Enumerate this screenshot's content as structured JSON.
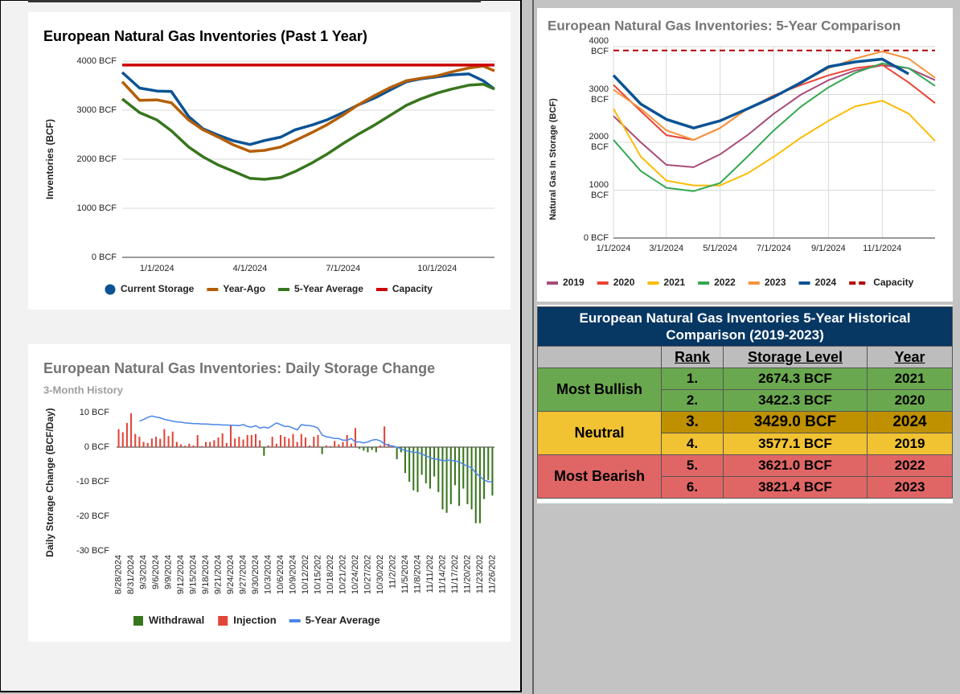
{
  "chart_data": [
    {
      "type": "line",
      "title": "European Natural Gas Inventories (Past 1 Year)",
      "y_label": "Inventories (BCF)",
      "x": [
        "11/28/2023",
        "12/15/2023",
        "1/1/2024",
        "1/15/2024",
        "2/1/2024",
        "2/15/2024",
        "3/1/2024",
        "3/15/2024",
        "4/1/2024",
        "4/15/2024",
        "5/1/2024",
        "5/15/2024",
        "6/1/2024",
        "6/15/2024",
        "7/1/2024",
        "7/15/2024",
        "8/1/2024",
        "8/15/2024",
        "9/1/2024",
        "9/15/2024",
        "10/1/2024",
        "10/15/2024",
        "11/1/2024",
        "11/15/2024",
        "11/26/2024"
      ],
      "xlim": [
        "11/28/2023",
        "11/26/2024"
      ],
      "xticks": [
        "1/1/2024",
        "4/1/2024",
        "7/1/2024",
        "10/1/2024"
      ],
      "ylim": [
        0,
        4000
      ],
      "yticks": [
        {
          "value": 0,
          "label": "0 BCF"
        },
        {
          "value": 1000,
          "label": "1000 BCF"
        },
        {
          "value": 2000,
          "label": "2000 BCF"
        },
        {
          "value": 3000,
          "label": "3000 BCF"
        },
        {
          "value": 4000,
          "label": "4000 BCF"
        }
      ],
      "grid": true,
      "series": [
        {
          "name": "Current Storage",
          "color": "#0b5394",
          "marker": "circle",
          "values": [
            3770,
            3450,
            3390,
            3380,
            2870,
            2620,
            2490,
            2380,
            2300,
            2380,
            2450,
            2600,
            2700,
            2800,
            2950,
            3100,
            3250,
            3400,
            3580,
            3640,
            3680,
            3720,
            3740,
            3600,
            3430
          ]
        },
        {
          "name": "Year-Ago",
          "color": "#b45f06",
          "values": [
            3580,
            3200,
            3210,
            3150,
            2800,
            2600,
            2450,
            2300,
            2160,
            2180,
            2250,
            2380,
            2550,
            2700,
            2900,
            3100,
            3300,
            3450,
            3600,
            3650,
            3700,
            3780,
            3860,
            3900,
            3800
          ]
        },
        {
          "name": "5-Year Average",
          "color": "#38761d",
          "values": [
            3230,
            2950,
            2800,
            2580,
            2250,
            2050,
            1880,
            1760,
            1610,
            1590,
            1630,
            1750,
            1930,
            2100,
            2320,
            2500,
            2700,
            2880,
            3100,
            3230,
            3350,
            3430,
            3510,
            3530,
            3430
          ]
        },
        {
          "name": "Capacity",
          "color": "#cc0000",
          "values": [
            3920,
            3920,
            3920,
            3920,
            3920,
            3920,
            3920,
            3920,
            3920,
            3920,
            3920,
            3920,
            3920,
            3920,
            3920,
            3920,
            3920,
            3920,
            3920,
            3920,
            3920,
            3920,
            3920,
            3920,
            3920
          ]
        }
      ]
    },
    {
      "type": "bar",
      "title": "European Natural Gas Inventories: Daily Storage Change",
      "subtitle": "3-Month History",
      "y_label": "Daily Storage Change (BCF/Day)",
      "categories": [
        "8/28/2024",
        null,
        null,
        "8/31/2024",
        null,
        null,
        "9/3/2024",
        null,
        null,
        "9/6/2024",
        null,
        null,
        "9/9/2024",
        null,
        null,
        "9/12/2024",
        null,
        null,
        "9/15/2024",
        null,
        null,
        "9/18/2024",
        null,
        null,
        "9/21/2024",
        null,
        null,
        "9/24/2024",
        null,
        null,
        "9/27/2024",
        null,
        null,
        "9/30/2024",
        null,
        null,
        "10/3/2024",
        null,
        null,
        "10/6/2024",
        null,
        null,
        "10/9/2024",
        null,
        null,
        "10/12/202",
        null,
        null,
        "10/15/202",
        null,
        null,
        "10/18/202",
        null,
        null,
        "10/21/202",
        null,
        null,
        "10/24/202",
        null,
        null,
        "10/27/202",
        null,
        null,
        "10/30/202",
        null,
        null,
        "11/2/202",
        null,
        null,
        "11/5/2024",
        null,
        null,
        "11/8/2024",
        null,
        null,
        "11/11/202",
        null,
        null,
        "11/14/202",
        null,
        null,
        "11/17/202",
        null,
        null,
        "11/20/202",
        null,
        null,
        "11/23/202",
        null,
        null,
        "11/26/202"
      ],
      "ylim": [
        -30,
        10
      ],
      "yticks": [
        {
          "value": -30,
          "label": "-30 BCF"
        },
        {
          "value": -20,
          "label": "-20 BCF"
        },
        {
          "value": -10,
          "label": "-10 BCF"
        },
        {
          "value": 0,
          "label": "0 BCF"
        },
        {
          "value": 10,
          "label": "10 BCF"
        }
      ],
      "grid": false,
      "series": [
        {
          "name": "Withdrawal",
          "color": "#38761d",
          "values": [
            null,
            null,
            null,
            null,
            null,
            null,
            null,
            null,
            null,
            null,
            null,
            null,
            null,
            null,
            null,
            null,
            null,
            null,
            null,
            null,
            null,
            null,
            null,
            null,
            null,
            null,
            null,
            null,
            null,
            null,
            null,
            null,
            null,
            null,
            null,
            -2.5,
            null,
            null,
            null,
            null,
            null,
            null,
            null,
            null,
            null,
            null,
            null,
            null,
            null,
            -2.0,
            null,
            null,
            null,
            null,
            null,
            null,
            null,
            null,
            -0.5,
            -1.0,
            -1.5,
            -0.8,
            -1.5,
            null,
            null,
            null,
            null,
            -3.5,
            -1.5,
            -7.5,
            -10.0,
            -12.5,
            -13.0,
            -8.0,
            -10.5,
            -12.0,
            -8.5,
            -13.0,
            -18.0,
            -19.0,
            -16.5,
            -11.0,
            -17.0,
            -12.0,
            -16.5,
            -18.0,
            -22.0,
            -22.0,
            -15.0,
            -9.5,
            -14.0
          ]
        },
        {
          "name": "Injection",
          "color": "#e0463a",
          "values": [
            5.2,
            4.3,
            7.0,
            9.8,
            3.8,
            3.0,
            1.5,
            1.2,
            2.5,
            3.0,
            2.4,
            5.2,
            3.2,
            4.5,
            1.5,
            0.8,
            0.4,
            1.0,
            0.5,
            3.5,
            0.3,
            1.5,
            1.5,
            2.0,
            2.8,
            4.0,
            1.2,
            6.5,
            2.5,
            3.0,
            2.2,
            3.5,
            3.5,
            3.8,
            2.0,
            null,
            0.5,
            3.0,
            1.0,
            3.5,
            3.0,
            2.5,
            3.8,
            1.5,
            3.8,
            2.8,
            0.5,
            3.0,
            3.5,
            null,
            0.5,
            0.3,
            1.8,
            0.8,
            1.5,
            3.5,
            1.0,
            5.5,
            null,
            null,
            null,
            null,
            null,
            0.5,
            6.0,
            1.0,
            0.5,
            null,
            null,
            null,
            null,
            null,
            null,
            null,
            null,
            null,
            null,
            null,
            null,
            null,
            null,
            null,
            null,
            null,
            null,
            null,
            null,
            null,
            null,
            null,
            null
          ]
        },
        {
          "name": "5-Year Average",
          "color": "#4a86e8",
          "type": "line",
          "values": [
            null,
            null,
            null,
            null,
            null,
            7.5,
            8.0,
            8.6,
            9.0,
            8.7,
            8.5,
            8.0,
            7.8,
            7.5,
            7.3,
            7.2,
            7.0,
            6.9,
            6.8,
            6.8,
            6.7,
            6.7,
            6.6,
            6.5,
            6.5,
            6.4,
            6.4,
            6.3,
            6.3,
            6.2,
            6.5,
            6.0,
            5.8,
            6.2,
            5.5,
            5.8,
            5.5,
            6.2,
            7.0,
            6.5,
            6.0,
            6.0,
            5.5,
            5.0,
            6.5,
            6.3,
            6.2,
            6.0,
            5.5,
            3.5,
            3.0,
            2.8,
            2.5,
            2.5,
            2.0,
            2.0,
            2.5,
            1.5,
            1.5,
            1.2,
            1.5,
            2.0,
            2.2,
            1.8,
            1.0,
            0.5,
            0.3,
            0.0,
            -0.5,
            -1.0,
            -1.2,
            -1.5,
            -1.5,
            -2.0,
            -2.5,
            -3.0,
            -3.5,
            -3.5,
            -4.0,
            -3.8,
            -3.8,
            -4.0,
            -4.2,
            -5.0,
            -5.5,
            -6.0,
            -7.5,
            -8.5,
            -9.5,
            -10.0,
            -10.0
          ]
        }
      ]
    },
    {
      "type": "line",
      "title": "European Natural Gas Inventories: 5-Year Comparison",
      "y_label": "Natural Gas In Storage (BCF)",
      "x": [
        "1/1/2024",
        "2/1/2024",
        "3/1/2024",
        "4/1/2024",
        "5/1/2024",
        "6/1/2024",
        "7/1/2024",
        "8/1/2024",
        "9/1/2024",
        "10/1/2024",
        "11/1/2024",
        "12/1/2024",
        "12/31/2024"
      ],
      "xlim": [
        "1/1/2024",
        "12/31/2024"
      ],
      "xticks": [
        "1/1/2024",
        "3/1/2024",
        "5/1/2024",
        "7/1/2024",
        "9/1/2024",
        "11/1/2024"
      ],
      "ylim": [
        0,
        4000
      ],
      "yticks": [
        {
          "value": 0,
          "label": "0 BCF"
        },
        {
          "value": 1000,
          "label": "1000 BCF"
        },
        {
          "value": 2000,
          "label": "2000 BCF"
        },
        {
          "value": 3000,
          "label": "3000 BCF"
        },
        {
          "value": 4000,
          "label": "4000 BCF"
        }
      ],
      "grid": true,
      "xgrid": true,
      "series": [
        {
          "name": "2019",
          "color": "#a64d79",
          "values": [
            2550,
            2000,
            1530,
            1480,
            1750,
            2150,
            2600,
            3000,
            3300,
            3500,
            3610,
            3550,
            3300
          ]
        },
        {
          "name": "2020",
          "color": "#ea4335",
          "values": [
            3200,
            2650,
            2150,
            2050,
            2300,
            2700,
            2980,
            3200,
            3400,
            3550,
            3620,
            3250,
            2820
          ]
        },
        {
          "name": "2021",
          "color": "#fbbc04",
          "values": [
            2700,
            1700,
            1200,
            1100,
            1100,
            1350,
            1700,
            2100,
            2450,
            2750,
            2870,
            2600,
            2030
          ]
        },
        {
          "name": "2022",
          "color": "#34a853",
          "values": [
            2050,
            1400,
            1050,
            980,
            1150,
            1700,
            2250,
            2750,
            3150,
            3450,
            3650,
            3550,
            3180
          ]
        },
        {
          "name": "2023",
          "color": "#f6943c",
          "values": [
            3100,
            2700,
            2250,
            2050,
            2300,
            2700,
            2950,
            3250,
            3550,
            3750,
            3900,
            3750,
            3350
          ]
        },
        {
          "name": "2024",
          "color": "#0b5394",
          "values": [
            3400,
            2800,
            2480,
            2300,
            2450,
            2700,
            2950,
            3250,
            3580,
            3680,
            3740,
            3430,
            null
          ]
        },
        {
          "name": "Capacity",
          "color": "#b00000",
          "dashed": true,
          "values": [
            3920,
            3920,
            3920,
            3920,
            3920,
            3920,
            3920,
            3920,
            3920,
            3920,
            3920,
            3920,
            3920
          ]
        }
      ]
    }
  ],
  "table": {
    "title": "European Natural Gas Inventories 5-Year Historical Comparison (2019-2023)",
    "columns": [
      "Rank",
      "Storage Level",
      "Year"
    ],
    "groups": [
      {
        "label": "Most Bullish",
        "rows": [
          [
            "1.",
            "2674.3 BCF",
            "2021"
          ],
          [
            "2.",
            "3422.3 BCF",
            "2020"
          ]
        ]
      },
      {
        "label": "Neutral",
        "rows": [
          [
            "3.",
            "3429.0 BCF",
            "2024"
          ],
          [
            "4.",
            "3577.1 BCF",
            "2019"
          ]
        ]
      },
      {
        "label": "Most Bearish",
        "rows": [
          [
            "5.",
            "3621.0 BCF",
            "2022"
          ],
          [
            "6.",
            "3821.4 BCF",
            "2023"
          ]
        ]
      }
    ]
  }
}
